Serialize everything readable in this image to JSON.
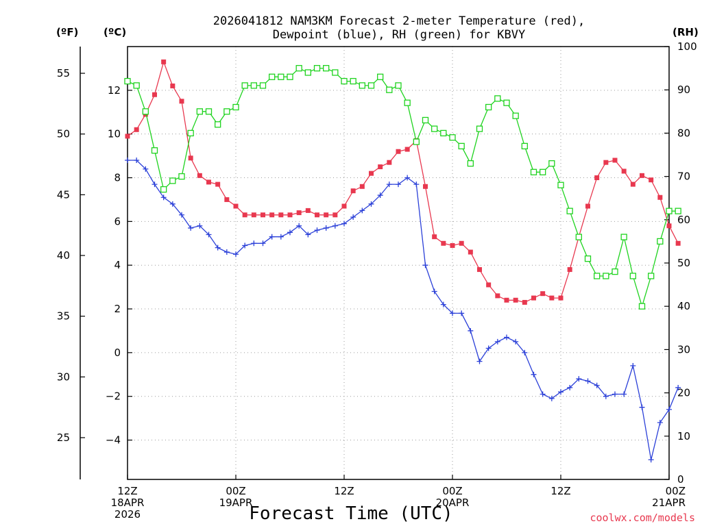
{
  "title_line1": "2026041812 NAM3KM Forecast 2-meter Temperature (red),",
  "title_line2": "Dewpoint (blue), RH (green) for KBVY",
  "left_unit_f": "(ºF)",
  "left_unit_c": "(ºC)",
  "right_unit": "(RH)",
  "x_axis_title": "Forecast Time (UTC)",
  "credit": "coolwx.com/models",
  "colors": {
    "temperature": "#e8384f",
    "dewpoint": "#2a3fd8",
    "rh": "#1ed31e",
    "credit": "#e8384f"
  },
  "chart_data": {
    "type": "line",
    "x_hours_range": [
      0,
      60
    ],
    "x_ticks": [
      {
        "hour": 0,
        "lines": [
          "12Z",
          "18APR",
          "2026"
        ]
      },
      {
        "hour": 12,
        "lines": [
          "00Z",
          "19APR"
        ]
      },
      {
        "hour": 24,
        "lines": [
          "12Z"
        ]
      },
      {
        "hour": 36,
        "lines": [
          "00Z",
          "20APR"
        ]
      },
      {
        "hour": 48,
        "lines": [
          "12Z"
        ]
      },
      {
        "hour": 60,
        "lines": [
          "00Z",
          "21APR"
        ]
      }
    ],
    "celsius_axis": {
      "range": [
        -5.8,
        14.0
      ],
      "ticks": [
        -4,
        -2,
        0,
        2,
        4,
        6,
        8,
        10,
        12
      ],
      "tick_labels": [
        "−4",
        "−2",
        "0",
        "2",
        "4",
        "6",
        "8",
        "10",
        "12"
      ]
    },
    "fahrenheit_axis": {
      "ticks": [
        25,
        30,
        35,
        40,
        45,
        50,
        55
      ],
      "tick_labels": [
        "25",
        "30",
        "35",
        "40",
        "45",
        "50",
        "55"
      ]
    },
    "rh_axis": {
      "range": [
        0,
        100
      ],
      "ticks": [
        0,
        10,
        20,
        30,
        40,
        50,
        60,
        70,
        80,
        90,
        100
      ],
      "tick_labels": [
        "0",
        "10",
        "20",
        "30",
        "40",
        "50",
        "60",
        "70",
        "80",
        "90",
        "100"
      ]
    },
    "grid": true,
    "series": [
      {
        "name": "Temperature (°C)",
        "axis": "celsius",
        "marker": "filled-square",
        "values": [
          9.9,
          10.2,
          10.9,
          11.8,
          13.3,
          12.2,
          11.5,
          8.9,
          8.1,
          7.8,
          7.7,
          7.0,
          6.7,
          6.3,
          6.3,
          6.3,
          6.3,
          6.3,
          6.3,
          6.4,
          6.5,
          6.3,
          6.3,
          6.3,
          6.7,
          7.4,
          7.6,
          8.2,
          8.5,
          8.7,
          9.2,
          9.3,
          9.7,
          7.6,
          5.3,
          5.0,
          4.9,
          5.0,
          4.6,
          3.8,
          3.1,
          2.6,
          2.4,
          2.4,
          2.3,
          2.5,
          2.7,
          2.5,
          2.5,
          3.8,
          5.3,
          6.7,
          8.0,
          8.7,
          8.8,
          8.3,
          7.7,
          8.1,
          7.9,
          7.1,
          5.8,
          5.0
        ]
      },
      {
        "name": "Dewpoint (°C)",
        "axis": "celsius",
        "marker": "plus",
        "values": [
          8.8,
          8.8,
          8.4,
          7.7,
          7.1,
          6.8,
          6.3,
          5.7,
          5.8,
          5.4,
          4.8,
          4.6,
          4.5,
          4.9,
          5.0,
          5.0,
          5.3,
          5.3,
          5.5,
          5.8,
          5.4,
          5.6,
          5.7,
          5.8,
          5.9,
          6.2,
          6.5,
          6.8,
          7.2,
          7.7,
          7.7,
          8.0,
          7.7,
          4.0,
          2.8,
          2.2,
          1.8,
          1.8,
          1.0,
          -0.4,
          0.2,
          0.5,
          0.7,
          0.5,
          -0.0,
          -1.0,
          -1.9,
          -2.1,
          -1.8,
          -1.6,
          -1.2,
          -1.3,
          -1.5,
          -2.0,
          -1.9,
          -1.9,
          -0.6,
          -2.5,
          -4.9,
          -3.2,
          -2.6,
          -1.6
        ]
      },
      {
        "name": "RH (%)",
        "axis": "rh",
        "marker": "open-square",
        "values": [
          92,
          91,
          85,
          76,
          67,
          69,
          70,
          80,
          85,
          85,
          82,
          85,
          86,
          91,
          91,
          91,
          93,
          93,
          93,
          95,
          94,
          95,
          95,
          94,
          92,
          92,
          91,
          91,
          93,
          90,
          91,
          87,
          78,
          83,
          81,
          80,
          79,
          77,
          73,
          81,
          86,
          88,
          87,
          84,
          77,
          71,
          71,
          73,
          68,
          62,
          56,
          51,
          47,
          47,
          48,
          56,
          47,
          40,
          47,
          55,
          62,
          62
        ]
      }
    ]
  }
}
